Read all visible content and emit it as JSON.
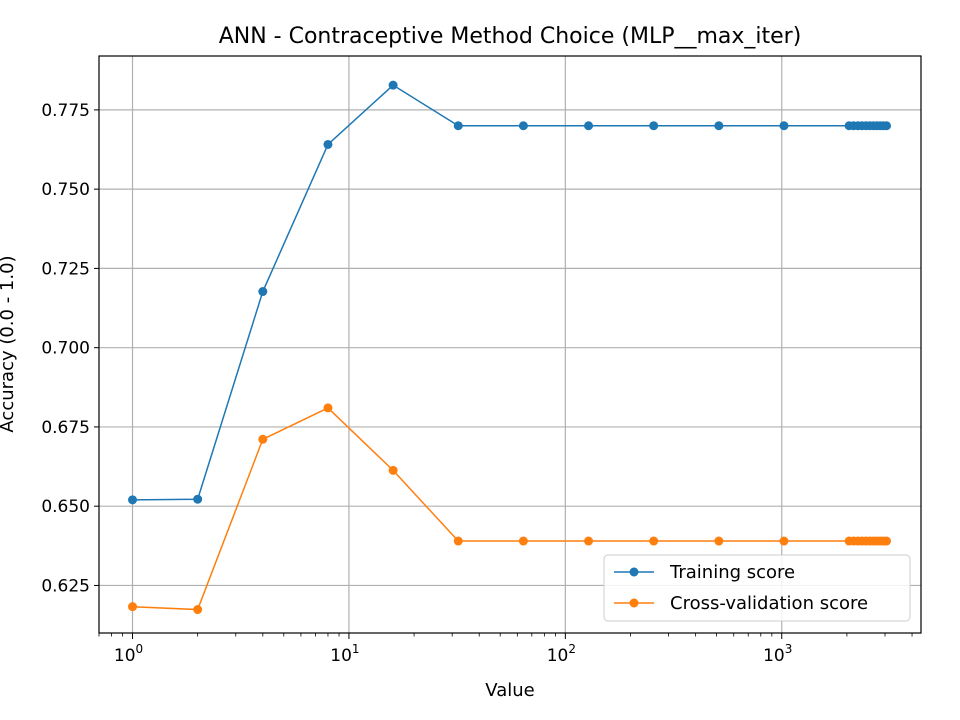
{
  "chart_data": {
    "type": "line",
    "title": "ANN - Contraceptive Method Choice (MLP__max_iter)",
    "xlabel": "Value",
    "ylabel": "Accuracy (0.0 - 1.0)",
    "xscale": "log",
    "xlim": [
      0.7,
      4400
    ],
    "ylim": [
      0.61,
      0.792
    ],
    "grid": true,
    "legend_position": "lower-right",
    "x_ticks": [
      {
        "value": 1,
        "base": "10",
        "exp": "0"
      },
      {
        "value": 10,
        "base": "10",
        "exp": "1"
      },
      {
        "value": 100,
        "base": "10",
        "exp": "2"
      },
      {
        "value": 1000,
        "base": "10",
        "exp": "3"
      }
    ],
    "y_ticks": [
      0.625,
      0.65,
      0.675,
      0.7,
      0.725,
      0.75,
      0.775
    ],
    "y_tick_labels": [
      "0.625",
      "0.650",
      "0.675",
      "0.700",
      "0.725",
      "0.750",
      "0.775"
    ],
    "x": [
      1,
      2,
      4,
      8,
      16,
      32,
      64,
      128,
      256,
      512,
      1024,
      2048,
      2148,
      2248,
      2348,
      2448,
      2548,
      2648,
      2748,
      2848,
      2948,
      3048
    ],
    "series": [
      {
        "name": "Training score",
        "color": "#1f77b4",
        "values": [
          0.652,
          0.6522,
          0.7177,
          0.7641,
          0.7828,
          0.77,
          0.77,
          0.77,
          0.77,
          0.77,
          0.77,
          0.77,
          0.77,
          0.77,
          0.77,
          0.77,
          0.77,
          0.77,
          0.77,
          0.77,
          0.77,
          0.77
        ]
      },
      {
        "name": "Cross-validation score",
        "color": "#ff7f0e",
        "values": [
          0.6183,
          0.6174,
          0.6711,
          0.681,
          0.6613,
          0.639,
          0.639,
          0.639,
          0.639,
          0.639,
          0.639,
          0.639,
          0.639,
          0.639,
          0.639,
          0.639,
          0.639,
          0.639,
          0.639,
          0.639,
          0.639,
          0.639
        ]
      }
    ]
  }
}
